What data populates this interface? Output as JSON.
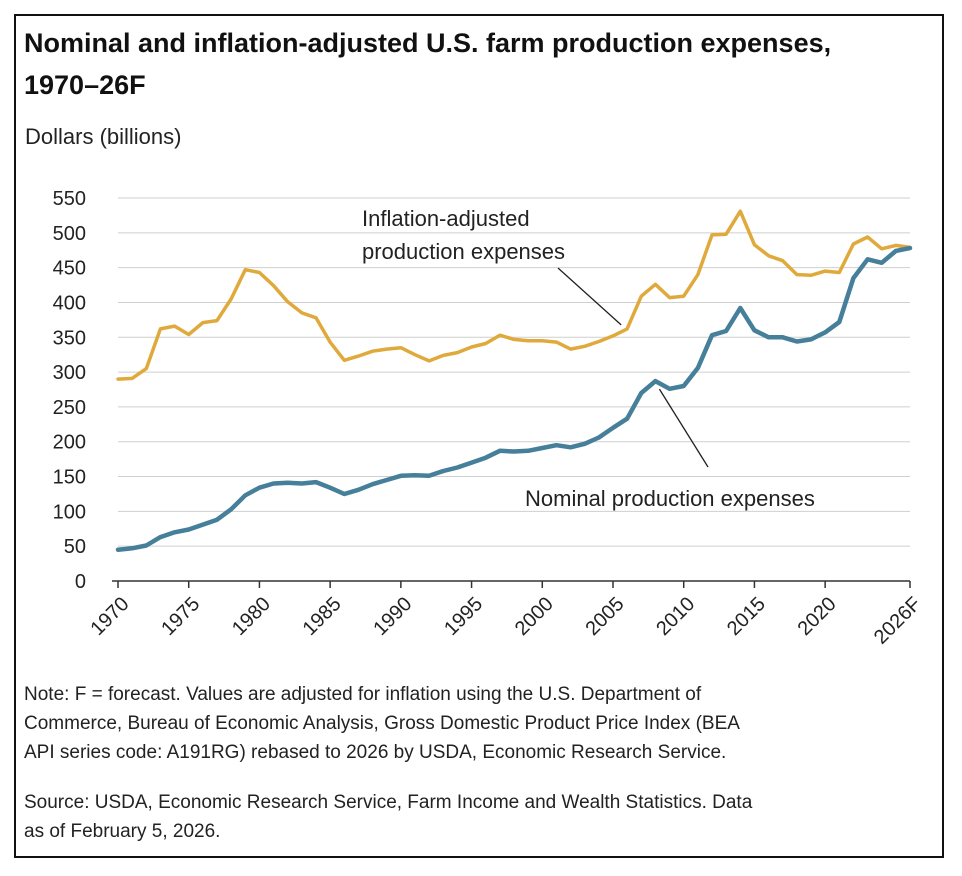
{
  "chart_data": {
    "type": "line",
    "title": "Nominal and inflation-adjusted U.S. farm production expenses, 1970–26F",
    "ylabel": "Dollars (billions)",
    "ylim": [
      0,
      550
    ],
    "yticks": [
      "0",
      "50",
      "100",
      "150",
      "200",
      "250",
      "300",
      "350",
      "400",
      "450",
      "500",
      "550"
    ],
    "xticks": [
      {
        "year": 1970,
        "label": "1970"
      },
      {
        "year": 1975,
        "label": "1975"
      },
      {
        "year": 1980,
        "label": "1980"
      },
      {
        "year": 1985,
        "label": "1985"
      },
      {
        "year": 1990,
        "label": "1990"
      },
      {
        "year": 1995,
        "label": "1995"
      },
      {
        "year": 2000,
        "label": "2000"
      },
      {
        "year": 2005,
        "label": "2005"
      },
      {
        "year": 2010,
        "label": "2010"
      },
      {
        "year": 2015,
        "label": "2015"
      },
      {
        "year": 2020,
        "label": "2020"
      },
      {
        "year": 2026,
        "label": "2026F"
      }
    ],
    "xlim": [
      1970,
      2026
    ],
    "grid": "horizontal",
    "x": [
      1970,
      1971,
      1972,
      1973,
      1974,
      1975,
      1976,
      1977,
      1978,
      1979,
      1980,
      1981,
      1982,
      1983,
      1984,
      1985,
      1986,
      1987,
      1988,
      1989,
      1990,
      1991,
      1992,
      1993,
      1994,
      1995,
      1996,
      1997,
      1998,
      1999,
      2000,
      2001,
      2002,
      2003,
      2004,
      2005,
      2006,
      2007,
      2008,
      2009,
      2010,
      2011,
      2012,
      2013,
      2014,
      2015,
      2016,
      2017,
      2018,
      2019,
      2020,
      2021,
      2022,
      2023,
      2024,
      2025,
      2026
    ],
    "series": [
      {
        "name": "Inflation-adjusted production expenses",
        "color": "#e0a93c",
        "values": [
          290,
          291,
          305,
          362,
          366,
          354,
          371,
          374,
          405,
          447,
          443,
          424,
          401,
          385,
          378,
          343,
          317,
          323,
          330,
          333,
          335,
          325,
          316,
          324,
          328,
          336,
          341,
          353,
          347,
          345,
          345,
          343,
          333,
          337,
          344,
          352,
          362,
          409,
          426,
          407,
          409,
          440,
          497,
          498,
          531,
          483,
          467,
          460,
          440,
          439,
          445,
          443,
          484,
          494,
          477,
          482,
          479
        ]
      },
      {
        "name": "Nominal production expenses",
        "color": "#467f99",
        "values": [
          45,
          47,
          51,
          63,
          70,
          74,
          81,
          88,
          103,
          123,
          134,
          140,
          141,
          140,
          142,
          134,
          125,
          131,
          139,
          145,
          151,
          152,
          151,
          158,
          163,
          170,
          177,
          187,
          186,
          187,
          191,
          195,
          192,
          197,
          206,
          220,
          233,
          270,
          287,
          276,
          280,
          306,
          353,
          359,
          392,
          360,
          350,
          350,
          344,
          347,
          357,
          372,
          435,
          462,
          457,
          474,
          478
        ]
      }
    ],
    "annotations": [
      {
        "text_lines": [
          "Inflation-adjusted",
          "production expenses"
        ],
        "series": 0,
        "point_year": 2006
      },
      {
        "text_lines": [
          "Nominal production expenses"
        ],
        "series": 1,
        "point_year": 2008
      }
    ]
  },
  "notes": {
    "note_lines": [
      "Note: F = forecast. Values are adjusted for inflation using the U.S. Department of",
      "Commerce, Bureau of Economic Analysis, Gross Domestic Product Price Index (BEA",
      "API series code: A191RG) rebased to 2026 by USDA, Economic Research Service."
    ],
    "source_lines": [
      "Source: USDA, Economic Research Service, Farm Income and Wealth Statistics. Data",
      "as of February 5, 2026."
    ]
  }
}
